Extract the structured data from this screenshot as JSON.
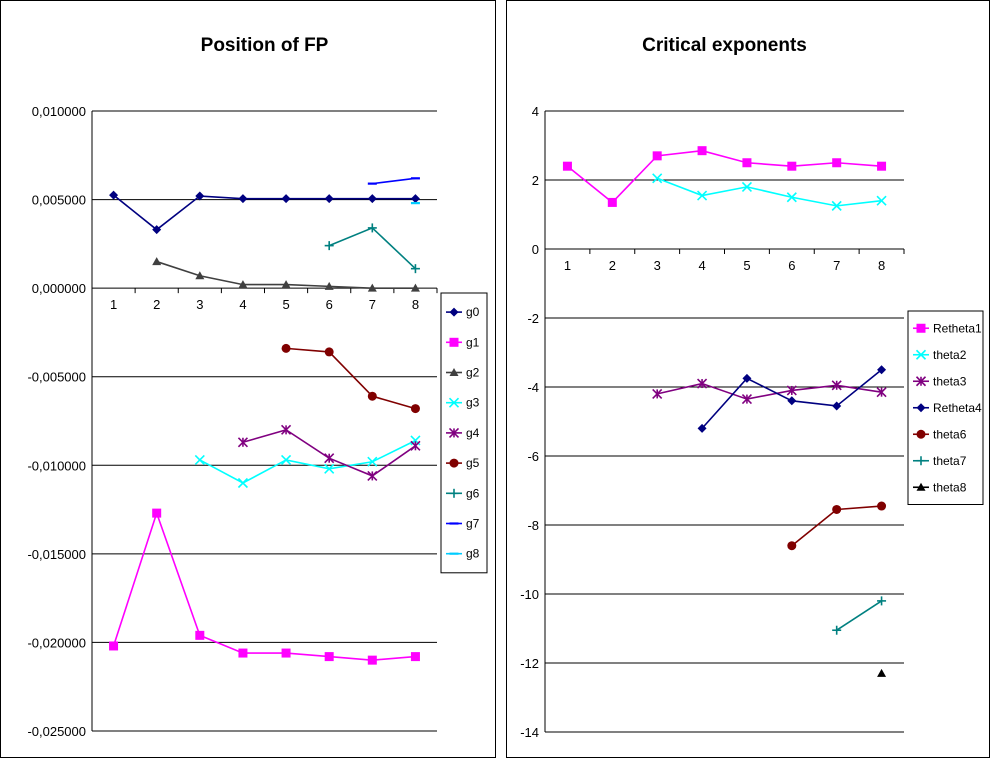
{
  "chart_data": [
    {
      "type": "line",
      "title": "Position of FP",
      "xlabel": "",
      "ylabel": "",
      "categories": [
        "1",
        "2",
        "3",
        "4",
        "5",
        "6",
        "7",
        "8"
      ],
      "ylim": [
        -0.025,
        0.01
      ],
      "yticks": [
        0.01,
        0.005,
        0.0,
        -0.005,
        -0.01,
        -0.015,
        -0.02,
        -0.025
      ],
      "ytick_labels": [
        "0,010000",
        "0,005000",
        "0,000000",
        "-0,005000",
        "-0,010000",
        "-0,015000",
        "-0,020000",
        "-0,025000"
      ],
      "grid": true,
      "legend_position": "right",
      "series": [
        {
          "name": "g0",
          "color": "#000080",
          "marker": "diamond",
          "values": [
            0.00525,
            0.0033,
            0.0052,
            0.00505,
            0.00505,
            0.00505,
            0.00505,
            0.00505
          ]
        },
        {
          "name": "g1",
          "color": "#ff00ff",
          "marker": "square",
          "values": [
            -0.0202,
            -0.0127,
            -0.0196,
            -0.0206,
            -0.0206,
            -0.0208,
            -0.021,
            -0.0208
          ]
        },
        {
          "name": "g2",
          "color": "#404040",
          "marker": "triangle",
          "values": [
            null,
            0.0015,
            0.0007,
            0.0002,
            0.0002,
            0.0001,
            0.0,
            0.0
          ]
        },
        {
          "name": "g3",
          "color": "#00ffff",
          "marker": "x",
          "values": [
            null,
            null,
            -0.0097,
            -0.011,
            -0.0097,
            -0.0102,
            -0.0098,
            -0.0086
          ]
        },
        {
          "name": "g4",
          "color": "#800080",
          "marker": "star",
          "values": [
            null,
            null,
            null,
            -0.0087,
            -0.008,
            -0.0096,
            -0.0106,
            -0.0089
          ]
        },
        {
          "name": "g5",
          "color": "#800000",
          "marker": "circle",
          "values": [
            null,
            null,
            null,
            null,
            -0.0034,
            -0.0036,
            -0.0061,
            -0.0068
          ]
        },
        {
          "name": "g6",
          "color": "#008080",
          "marker": "plus",
          "values": [
            null,
            null,
            null,
            null,
            null,
            0.0024,
            0.0034,
            0.0011
          ]
        },
        {
          "name": "g7",
          "color": "#0000ff",
          "marker": "dash",
          "values": [
            null,
            null,
            null,
            null,
            null,
            null,
            0.0059,
            0.0062
          ]
        },
        {
          "name": "g8",
          "color": "#00ccff",
          "marker": "dash",
          "values": [
            null,
            null,
            null,
            null,
            null,
            null,
            null,
            0.0048
          ]
        }
      ]
    },
    {
      "type": "line",
      "title": "Critical exponents",
      "xlabel": "",
      "ylabel": "",
      "categories": [
        "1",
        "2",
        "3",
        "4",
        "5",
        "6",
        "7",
        "8"
      ],
      "ylim": [
        -14,
        4
      ],
      "yticks": [
        4,
        2,
        0,
        -2,
        -4,
        -6,
        -8,
        -10,
        -12,
        -14
      ],
      "ytick_labels": [
        "4",
        "2",
        "0",
        "-2",
        "-4",
        "-6",
        "-8",
        "-10",
        "-12",
        "-14"
      ],
      "grid": true,
      "legend_position": "right",
      "series": [
        {
          "name": "Retheta1",
          "color": "#ff00ff",
          "marker": "square",
          "values": [
            2.4,
            1.35,
            2.7,
            2.85,
            2.5,
            2.4,
            2.5,
            2.4
          ]
        },
        {
          "name": "theta2",
          "color": "#00ffff",
          "marker": "x",
          "values": [
            null,
            null,
            2.05,
            1.55,
            1.8,
            1.5,
            1.25,
            1.4
          ]
        },
        {
          "name": "theta3",
          "color": "#800080",
          "marker": "star",
          "values": [
            null,
            null,
            -4.2,
            -3.9,
            -4.35,
            -4.1,
            -3.95,
            -4.15
          ]
        },
        {
          "name": "Retheta4",
          "color": "#000080",
          "marker": "diamond",
          "values": [
            null,
            null,
            null,
            -5.2,
            -3.75,
            -4.4,
            -4.55,
            -3.5
          ]
        },
        {
          "name": "theta6",
          "color": "#800000",
          "marker": "circle",
          "values": [
            null,
            null,
            null,
            null,
            null,
            -8.6,
            -7.55,
            -7.45
          ]
        },
        {
          "name": "theta7",
          "color": "#008080",
          "marker": "plus",
          "values": [
            null,
            null,
            null,
            null,
            null,
            null,
            -11.05,
            -10.2
          ]
        },
        {
          "name": "theta8",
          "color": "#000000",
          "marker": "triangle",
          "values": [
            null,
            null,
            null,
            null,
            null,
            null,
            null,
            -12.3
          ]
        }
      ]
    }
  ]
}
